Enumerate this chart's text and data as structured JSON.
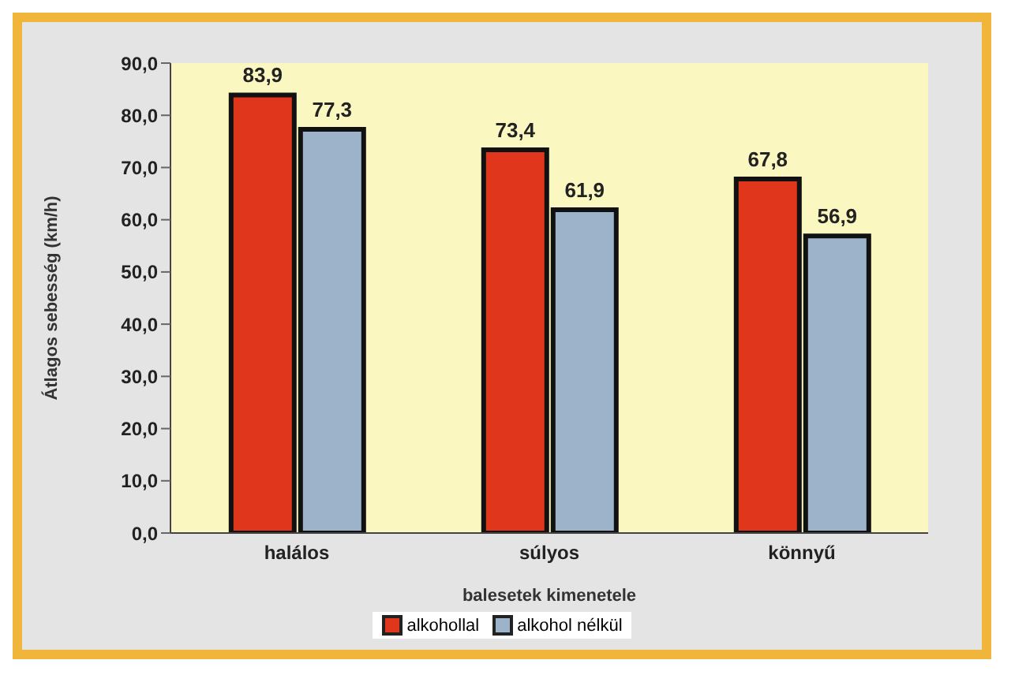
{
  "chart_data": {
    "type": "bar",
    "xlabel": "balesetek kimenetele",
    "ylabel": "Átlagos sebesség (km/h)",
    "categories": [
      "halálos",
      "súlyos",
      "könnyű"
    ],
    "series": [
      {
        "name": "alkohollal",
        "color": "#e0361c",
        "values": [
          83.9,
          73.4,
          67.8
        ],
        "value_labels": [
          "83,9",
          "73,4",
          "67,8"
        ]
      },
      {
        "name": "alkohol nélkül",
        "color": "#9db3c9",
        "values": [
          77.3,
          61.9,
          56.9
        ],
        "value_labels": [
          "77,3",
          "61,9",
          "56,9"
        ]
      }
    ],
    "ylim": [
      0,
      90
    ],
    "yticks": [
      {
        "value": 0,
        "label": "0,0"
      },
      {
        "value": 10,
        "label": "10,0"
      },
      {
        "value": 20,
        "label": "20,0"
      },
      {
        "value": 30,
        "label": "30,0"
      },
      {
        "value": 40,
        "label": "40,0"
      },
      {
        "value": 50,
        "label": "50,0"
      },
      {
        "value": 60,
        "label": "60,0"
      },
      {
        "value": 70,
        "label": "70,0"
      },
      {
        "value": 80,
        "label": "80,0"
      },
      {
        "value": 90,
        "label": "90,0"
      }
    ],
    "legend": "bottom"
  }
}
